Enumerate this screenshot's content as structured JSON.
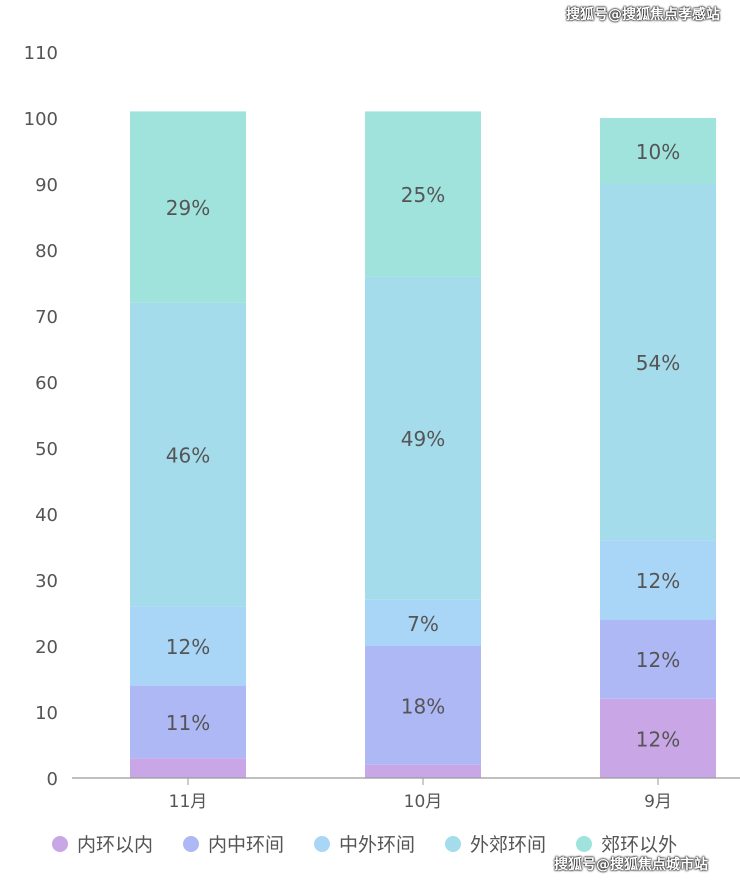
{
  "watermark_top": "搜狐号@搜狐焦点孝感站",
  "watermark_bottom": "搜狐号@搜狐焦点城市站",
  "chart_data": {
    "type": "bar",
    "stacked": true,
    "categories": [
      "11月",
      "10月",
      "9月"
    ],
    "ylim": [
      0,
      110
    ],
    "yticks": [
      0,
      10,
      20,
      30,
      40,
      50,
      60,
      70,
      80,
      90,
      100,
      110
    ],
    "grid": false,
    "legend_position": "bottom",
    "series": [
      {
        "name": "内环以内",
        "color": "#c9a6e6",
        "values": [
          3,
          2,
          12
        ],
        "labels": [
          "",
          "",
          "12%"
        ]
      },
      {
        "name": "内中环间",
        "color": "#aeb8f5",
        "values": [
          11,
          18,
          12
        ],
        "labels": [
          "11%",
          "18%",
          "12%"
        ]
      },
      {
        "name": "中外环间",
        "color": "#a9d6f7",
        "values": [
          12,
          7,
          12
        ],
        "labels": [
          "12%",
          "7%",
          "12%"
        ]
      },
      {
        "name": "外郊环间",
        "color": "#a4dceb",
        "values": [
          46,
          49,
          54
        ],
        "labels": [
          "46%",
          "49%",
          "54%"
        ]
      },
      {
        "name": "郊环以外",
        "color": "#a0e3dd",
        "values": [
          29,
          25,
          10
        ],
        "labels": [
          "29%",
          "25%",
          "10%"
        ]
      }
    ]
  }
}
